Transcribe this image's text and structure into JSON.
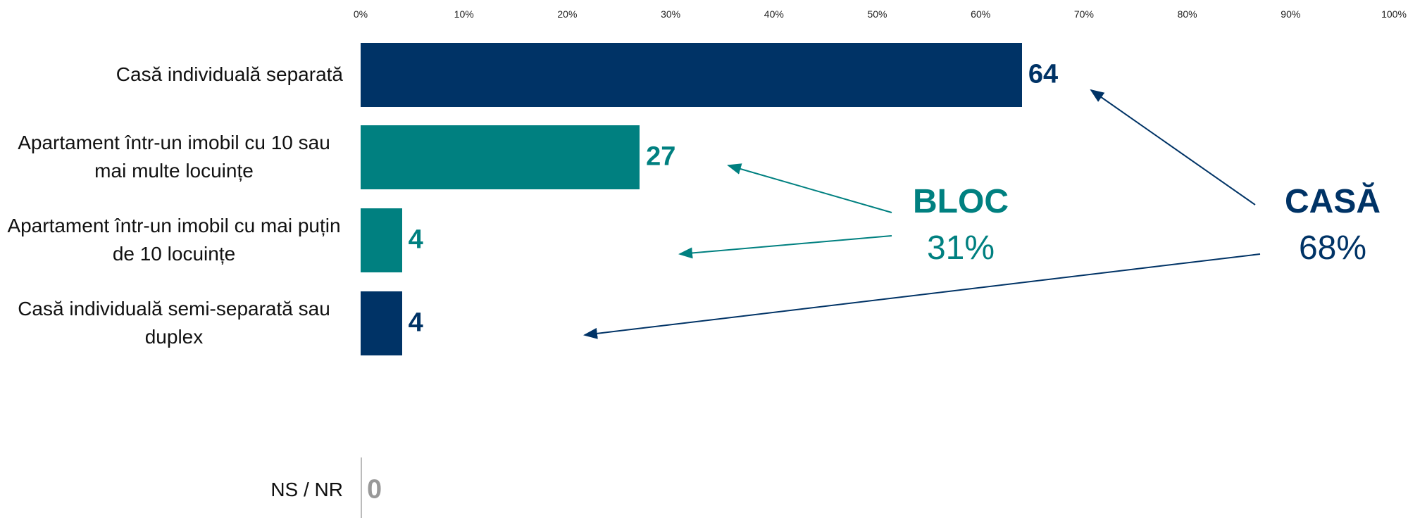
{
  "chart_data": {
    "type": "bar",
    "orientation": "horizontal",
    "categories": [
      "Casă individuală separată",
      "Apartament într-un imobil cu 10 sau mai multe locuințe",
      "Apartament într-un imobil cu mai puțin de 10 locuințe",
      "Casă individuală semi-separată sau duplex",
      "NS / NR"
    ],
    "values": [
      64,
      27,
      4,
      4,
      0
    ],
    "colors": [
      "#003366",
      "#008080",
      "#008080",
      "#003366",
      "#999999"
    ],
    "xlim": [
      0,
      100
    ],
    "xticks": [
      {
        "value": 0,
        "label": "0%"
      },
      {
        "value": 10,
        "label": "10%"
      },
      {
        "value": 20,
        "label": "20%"
      },
      {
        "value": 30,
        "label": "30%"
      },
      {
        "value": 40,
        "label": "40%"
      },
      {
        "value": 50,
        "label": "50%"
      },
      {
        "value": 60,
        "label": "60%"
      },
      {
        "value": 70,
        "label": "70%"
      },
      {
        "value": 80,
        "label": "80%"
      },
      {
        "value": 90,
        "label": "90%"
      },
      {
        "value": 100,
        "label": "100%"
      }
    ],
    "annotations": [
      {
        "title": "BLOC",
        "text": "31%",
        "color": "#008080"
      },
      {
        "title": "CASĂ",
        "text": "68%",
        "color": "#003366"
      }
    ]
  }
}
